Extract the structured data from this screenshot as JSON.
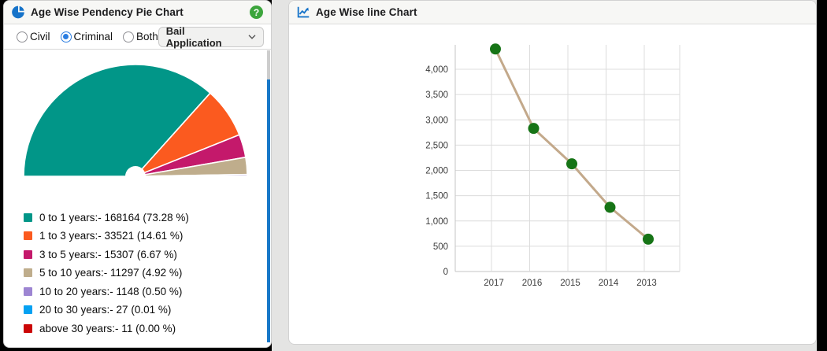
{
  "left_panel": {
    "title": "Age Wise Pendency Pie Chart",
    "header_icon": "pie-chart-icon",
    "help_icon": "question-mark-icon",
    "radio_options": [
      {
        "label": "Civil",
        "selected": false
      },
      {
        "label": "Criminal",
        "selected": true
      },
      {
        "label": "Both",
        "selected": false
      }
    ],
    "dropdown_value": "Bail Application"
  },
  "right_panel": {
    "title": "Age Wise line Chart",
    "header_icon": "line-chart-icon"
  },
  "colors": {
    "header_icon_blue": "#1673c9",
    "help_green": "#3ca53c",
    "radio_selected_blue": "#2a7de1",
    "scrollbar_thumb_blue": "#1878c8"
  },
  "chart_data": [
    {
      "type": "pie",
      "variant": "semi-circle-donut",
      "title": "Age Wise Pendency Pie Chart",
      "legend_position": "bottom",
      "legend": [
        {
          "label": "0 to 1 years",
          "value": 168164,
          "pct": 73.28,
          "display": "0 to 1 years:- 168164 (73.28 %)",
          "color": "#019688"
        },
        {
          "label": "1 to 3 years",
          "value": 33521,
          "pct": 14.61,
          "display": "1 to 3 years:- 33521 (14.61 %)",
          "color": "#fb5a1f"
        },
        {
          "label": "3 to 5 years",
          "value": 15307,
          "pct": 6.67,
          "display": "3 to 5 years:- 15307 (6.67 %)",
          "color": "#c4196b"
        },
        {
          "label": "5 to 10 years",
          "value": 11297,
          "pct": 4.92,
          "display": "5 to 10 years:- 11297 (4.92 %)",
          "color": "#bfad8c"
        },
        {
          "label": "10 to 20 years",
          "value": 1148,
          "pct": 0.5,
          "display": "10 to 20 years:- 1148 (0.50 %)",
          "color": "#9d85d2"
        },
        {
          "label": "20 to 30 years",
          "value": 27,
          "pct": 0.01,
          "display": "20 to 30 years:- 27 (0.01 %)",
          "color": "#05a1f2"
        },
        {
          "label": "above 30 years",
          "value": 11,
          "pct": 0.0,
          "display": "above 30 years:- 11 (0.00 %)",
          "color": "#cb0606"
        }
      ]
    },
    {
      "type": "line",
      "title": "Age Wise line Chart",
      "x": [
        "2017",
        "2016",
        "2015",
        "2014",
        "2013"
      ],
      "values": [
        4400,
        2830,
        2130,
        1270,
        640
      ],
      "yticks": [
        0,
        500,
        1000,
        1500,
        2000,
        2500,
        3000,
        3500,
        4000
      ],
      "ytick_labels": [
        "0",
        "500",
        "1,000",
        "1,500",
        "2,000",
        "2,500",
        "3,000",
        "3,500",
        "4,000"
      ],
      "ylim": [
        0,
        4400
      ],
      "grid": true,
      "line_color": "#c3a98b",
      "point_color": "#167416"
    }
  ]
}
